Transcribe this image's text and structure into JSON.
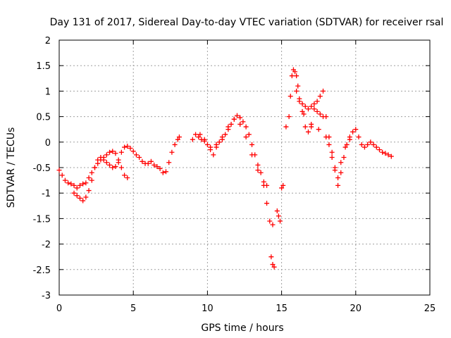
{
  "chart_data": {
    "type": "scatter",
    "title": "Day 131 of 2017, Sidereal Day-to-day VTEC variation (SDTVAR) for receiver rsal",
    "xlabel": "GPS time / hours",
    "ylabel": "SDTVAR / TECUs",
    "xlim": [
      0,
      25
    ],
    "ylim": [
      -3,
      2
    ],
    "xticks": [
      0,
      5,
      10,
      15,
      20,
      25
    ],
    "yticks": [
      -3,
      -2.5,
      -2,
      -1.5,
      -1,
      -0.5,
      0,
      0.5,
      1,
      1.5,
      2
    ],
    "ytick_labels": [
      "-3",
      "-2.5",
      "-2",
      "-1.5",
      "-1",
      "-0.5",
      "0",
      "0.5",
      "1",
      "1.5",
      "2"
    ],
    "grid": true,
    "marker": "plus",
    "color": "#ff0000",
    "series": [
      {
        "name": "SDTVAR",
        "points": [
          [
            0.0,
            -0.55
          ],
          [
            0.2,
            -0.65
          ],
          [
            0.4,
            -0.75
          ],
          [
            0.6,
            -0.8
          ],
          [
            0.8,
            -0.82
          ],
          [
            1.0,
            -0.85
          ],
          [
            1.2,
            -0.9
          ],
          [
            1.4,
            -0.85
          ],
          [
            1.6,
            -0.82
          ],
          [
            1.8,
            -0.8
          ],
          [
            2.0,
            -0.7
          ],
          [
            2.2,
            -0.6
          ],
          [
            2.4,
            -0.5
          ],
          [
            2.6,
            -0.42
          ],
          [
            2.8,
            -0.35
          ],
          [
            3.0,
            -0.3
          ],
          [
            3.2,
            -0.25
          ],
          [
            3.4,
            -0.2
          ],
          [
            3.6,
            -0.18
          ],
          [
            3.8,
            -0.22
          ],
          [
            4.0,
            -0.35
          ],
          [
            4.2,
            -0.5
          ],
          [
            4.4,
            -0.65
          ],
          [
            4.6,
            -0.7
          ],
          [
            1.0,
            -1.0
          ],
          [
            1.2,
            -1.05
          ],
          [
            1.4,
            -1.1
          ],
          [
            1.6,
            -1.15
          ],
          [
            1.8,
            -1.08
          ],
          [
            2.0,
            -0.95
          ],
          [
            2.2,
            -0.75
          ],
          [
            2.4,
            -0.5
          ],
          [
            2.6,
            -0.35
          ],
          [
            2.8,
            -0.3
          ],
          [
            3.0,
            -0.35
          ],
          [
            3.2,
            -0.4
          ],
          [
            3.4,
            -0.45
          ],
          [
            3.6,
            -0.5
          ],
          [
            3.8,
            -0.48
          ],
          [
            4.0,
            -0.4
          ],
          [
            4.2,
            -0.2
          ],
          [
            4.4,
            -0.1
          ],
          [
            4.6,
            -0.08
          ],
          [
            4.8,
            -0.12
          ],
          [
            5.0,
            -0.18
          ],
          [
            5.2,
            -0.25
          ],
          [
            5.4,
            -0.3
          ],
          [
            5.6,
            -0.38
          ],
          [
            5.8,
            -0.42
          ],
          [
            6.0,
            -0.42
          ],
          [
            6.2,
            -0.38
          ],
          [
            6.4,
            -0.45
          ],
          [
            6.6,
            -0.48
          ],
          [
            6.8,
            -0.52
          ],
          [
            7.0,
            -0.6
          ],
          [
            7.2,
            -0.58
          ],
          [
            7.4,
            -0.4
          ],
          [
            7.6,
            -0.2
          ],
          [
            7.8,
            -0.05
          ],
          [
            8.0,
            0.05
          ],
          [
            8.1,
            0.1
          ],
          [
            9.0,
            0.05
          ],
          [
            9.2,
            0.15
          ],
          [
            9.4,
            0.1
          ],
          [
            9.6,
            0.05
          ],
          [
            9.8,
            0.02
          ],
          [
            10.0,
            -0.05
          ],
          [
            10.2,
            -0.15
          ],
          [
            10.4,
            -0.25
          ],
          [
            10.6,
            -0.1
          ],
          [
            10.8,
            0.0
          ],
          [
            11.0,
            0.05
          ],
          [
            11.2,
            0.15
          ],
          [
            11.4,
            0.25
          ],
          [
            11.6,
            0.35
          ],
          [
            11.8,
            0.45
          ],
          [
            12.0,
            0.52
          ],
          [
            12.2,
            0.48
          ],
          [
            12.4,
            0.4
          ],
          [
            12.6,
            0.3
          ],
          [
            12.8,
            0.15
          ],
          [
            13.0,
            -0.05
          ],
          [
            13.2,
            -0.25
          ],
          [
            13.4,
            -0.45
          ],
          [
            13.6,
            -0.6
          ],
          [
            13.8,
            -0.85
          ],
          [
            14.0,
            -1.2
          ],
          [
            14.2,
            -1.55
          ],
          [
            14.4,
            -1.62
          ],
          [
            9.5,
            0.15
          ],
          [
            9.8,
            0.05
          ],
          [
            10.2,
            -0.1
          ],
          [
            10.6,
            -0.05
          ],
          [
            11.0,
            0.1
          ],
          [
            11.4,
            0.3
          ],
          [
            11.8,
            0.45
          ],
          [
            12.2,
            0.35
          ],
          [
            12.6,
            0.1
          ],
          [
            13.0,
            -0.25
          ],
          [
            13.4,
            -0.55
          ],
          [
            13.8,
            -0.78
          ],
          [
            14.0,
            -0.85
          ],
          [
            14.3,
            -2.25
          ],
          [
            14.4,
            -2.4
          ],
          [
            14.5,
            -2.45
          ],
          [
            14.7,
            -1.35
          ],
          [
            14.8,
            -1.45
          ],
          [
            14.9,
            -1.55
          ],
          [
            15.0,
            -0.9
          ],
          [
            15.1,
            -0.85
          ],
          [
            15.3,
            0.3
          ],
          [
            15.5,
            0.5
          ],
          [
            15.6,
            0.9
          ],
          [
            15.7,
            1.3
          ],
          [
            15.8,
            1.42
          ],
          [
            15.9,
            1.38
          ],
          [
            16.0,
            1.3
          ],
          [
            16.1,
            1.1
          ],
          [
            16.2,
            0.8
          ],
          [
            16.4,
            0.6
          ],
          [
            16.6,
            0.3
          ],
          [
            16.8,
            0.2
          ],
          [
            17.0,
            0.3
          ],
          [
            17.2,
            0.65
          ],
          [
            17.4,
            0.6
          ],
          [
            17.6,
            0.55
          ],
          [
            17.8,
            0.5
          ],
          [
            16.0,
            1.0
          ],
          [
            16.2,
            0.85
          ],
          [
            16.4,
            0.75
          ],
          [
            16.6,
            0.7
          ],
          [
            16.8,
            0.65
          ],
          [
            17.0,
            0.7
          ],
          [
            17.2,
            0.75
          ],
          [
            17.4,
            0.8
          ],
          [
            17.6,
            0.9
          ],
          [
            17.8,
            1.0
          ],
          [
            18.0,
            0.5
          ],
          [
            18.2,
            0.1
          ],
          [
            18.4,
            -0.2
          ],
          [
            18.6,
            -0.5
          ],
          [
            18.8,
            -0.7
          ],
          [
            19.0,
            -0.6
          ],
          [
            19.2,
            -0.3
          ],
          [
            19.4,
            -0.05
          ],
          [
            19.6,
            0.1
          ],
          [
            19.8,
            0.2
          ],
          [
            20.0,
            0.25
          ],
          [
            20.2,
            0.1
          ],
          [
            20.4,
            -0.05
          ],
          [
            20.6,
            -0.1
          ],
          [
            20.8,
            -0.05
          ],
          [
            21.0,
            0.0
          ],
          [
            21.2,
            -0.05
          ],
          [
            21.4,
            -0.1
          ],
          [
            21.6,
            -0.15
          ],
          [
            21.8,
            -0.2
          ],
          [
            22.0,
            -0.22
          ],
          [
            22.2,
            -0.25
          ],
          [
            22.4,
            -0.28
          ],
          [
            16.5,
            0.55
          ],
          [
            17.0,
            0.35
          ],
          [
            17.5,
            0.25
          ],
          [
            18.0,
            0.1
          ],
          [
            18.2,
            -0.05
          ],
          [
            18.4,
            -0.3
          ],
          [
            18.6,
            -0.55
          ],
          [
            18.8,
            -0.85
          ],
          [
            19.0,
            -0.4
          ],
          [
            19.3,
            -0.1
          ],
          [
            19.6,
            0.05
          ]
        ]
      }
    ]
  }
}
